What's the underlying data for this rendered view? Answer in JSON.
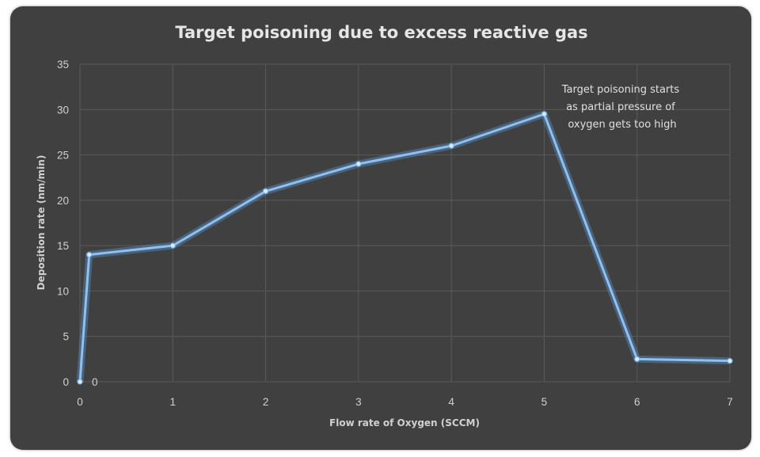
{
  "chart_data": {
    "type": "line",
    "title": "Target poisoning due to excess reactive gas",
    "xlabel": "Flow rate of Oxygen (SCCM)",
    "ylabel": "Deposition rate (nm/min)",
    "xlim": [
      0,
      7
    ],
    "ylim": [
      0,
      35
    ],
    "x_ticks": [
      "0",
      "1",
      "2",
      "3",
      "4",
      "5",
      "6",
      "7"
    ],
    "y_ticks": [
      "0",
      "5",
      "10",
      "15",
      "20",
      "25",
      "30",
      "35"
    ],
    "grid": true,
    "series": [
      {
        "x": [
          0,
          0.1,
          1,
          2,
          3,
          4,
          5,
          6,
          7
        ],
        "values": [
          0,
          14,
          15,
          21,
          24,
          26,
          29.5,
          2.5,
          2.3
        ]
      }
    ],
    "data_labels": [
      {
        "text": "0",
        "x": 0,
        "y": 0
      }
    ],
    "annotation": {
      "lines": [
        "Target poisoning starts",
        "as partial pressure of",
        "oxygen gets too high"
      ],
      "near_x": 5
    },
    "colors": {
      "background": "#404040",
      "line": "#8ec0f2",
      "glow": "#5fa2e8",
      "grid": "#5a5a5a",
      "text": "#d0d0d0"
    }
  }
}
